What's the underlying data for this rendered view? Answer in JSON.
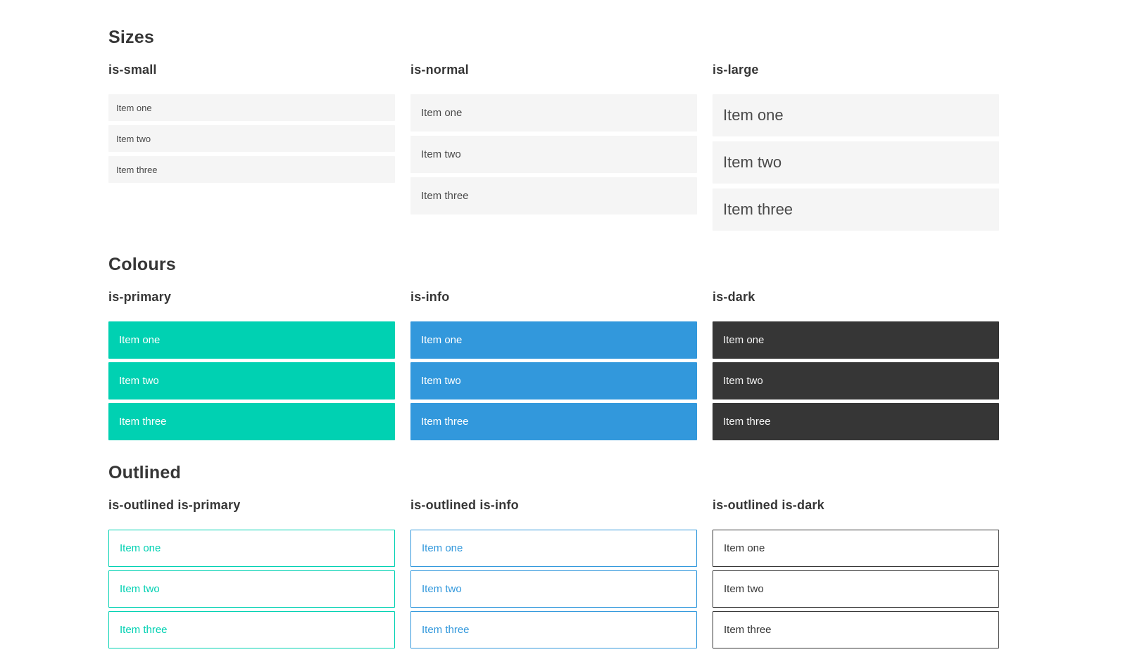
{
  "colors": {
    "primary": "#00d1b2",
    "info": "#3298dc",
    "dark": "#363636",
    "light": "#f5f5f5",
    "text": "#4a4a4a",
    "heading": "#363636"
  },
  "sections": [
    {
      "title": "Sizes",
      "groups": [
        {
          "label": "is-small",
          "items": [
            "Item one",
            "Item two",
            "Item three"
          ]
        },
        {
          "label": "is-normal",
          "items": [
            "Item one",
            "Item two",
            "Item three"
          ]
        },
        {
          "label": "is-large",
          "items": [
            "Item one",
            "Item two",
            "Item three"
          ]
        }
      ]
    },
    {
      "title": "Colours",
      "groups": [
        {
          "label": "is-primary",
          "items": [
            "Item one",
            "Item two",
            "Item three"
          ]
        },
        {
          "label": "is-info",
          "items": [
            "Item one",
            "Item two",
            "Item three"
          ]
        },
        {
          "label": "is-dark",
          "items": [
            "Item one",
            "Item two",
            "Item three"
          ]
        }
      ]
    },
    {
      "title": "Outlined",
      "groups": [
        {
          "label": "is-outlined is-primary",
          "items": [
            "Item one",
            "Item two",
            "Item three"
          ]
        },
        {
          "label": "is-outlined is-info",
          "items": [
            "Item one",
            "Item two",
            "Item three"
          ]
        },
        {
          "label": "is-outlined is-dark",
          "items": [
            "Item one",
            "Item two",
            "Item three"
          ]
        }
      ]
    }
  ]
}
